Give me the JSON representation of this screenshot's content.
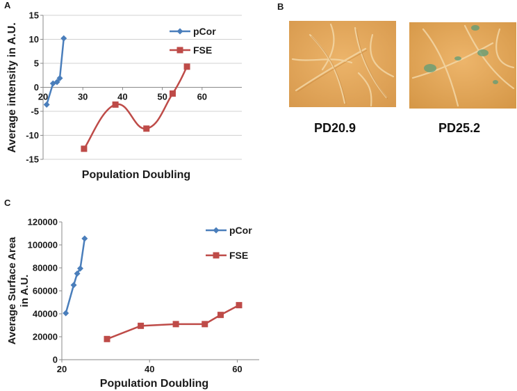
{
  "panels": {
    "a": "A",
    "b": "B",
    "c": "C"
  },
  "colors": {
    "pcor": "#4A7EBB",
    "fse": "#BE4B48",
    "axis": "#888888",
    "cell_bg": "#E3A458",
    "stain": "#5E9C78"
  },
  "images": {
    "left_caption": "PD20.9",
    "right_caption": "PD25.2"
  },
  "chart_data": [
    {
      "id": "A",
      "type": "line",
      "title": "",
      "xlabel": "Population Doubling",
      "ylabel": "Average intensity in A.U.",
      "xlim": [
        20,
        70
      ],
      "ylim": [
        -15,
        15
      ],
      "xticks": [
        20,
        30,
        40,
        50,
        60
      ],
      "yticks": [
        15,
        10,
        5,
        0,
        -5,
        -10,
        -15
      ],
      "grid": "horizontal",
      "legend": "top-right",
      "series": [
        {
          "name": "pCor",
          "marker": "diamond",
          "smooth": false,
          "x": [
            20.9,
            22.5,
            23.5,
            24.2,
            25.2
          ],
          "y": [
            -3.6,
            0.8,
            1.1,
            1.9,
            10.2
          ]
        },
        {
          "name": "FSE",
          "marker": "square",
          "smooth": true,
          "x": [
            30.3,
            38.2,
            46,
            52.6,
            56.2
          ],
          "y": [
            -12.8,
            -3.6,
            -8.6,
            -1.3,
            4.3
          ]
        }
      ]
    },
    {
      "id": "C",
      "type": "line",
      "title": "",
      "xlabel": "Population Doubling",
      "ylabel_lines": [
        "Average Surface Area",
        "in A.U."
      ],
      "xlim": [
        20,
        65
      ],
      "ylim": [
        0,
        120000
      ],
      "xticks": [
        20,
        40,
        60
      ],
      "yticks": [
        120000,
        100000,
        80000,
        60000,
        40000,
        20000,
        0
      ],
      "grid": "none",
      "legend": "top-right",
      "series": [
        {
          "name": "pCor",
          "marker": "diamond",
          "smooth": false,
          "x": [
            20.9,
            22.7,
            23.5,
            24.2,
            25.2
          ],
          "y": [
            40500,
            65000,
            75000,
            79500,
            105500
          ]
        },
        {
          "name": "FSE",
          "marker": "square",
          "smooth": false,
          "x": [
            30.3,
            38,
            46,
            52.6,
            56.2,
            60.4
          ],
          "y": [
            18000,
            29500,
            31000,
            31000,
            39000,
            47500
          ]
        }
      ]
    }
  ]
}
